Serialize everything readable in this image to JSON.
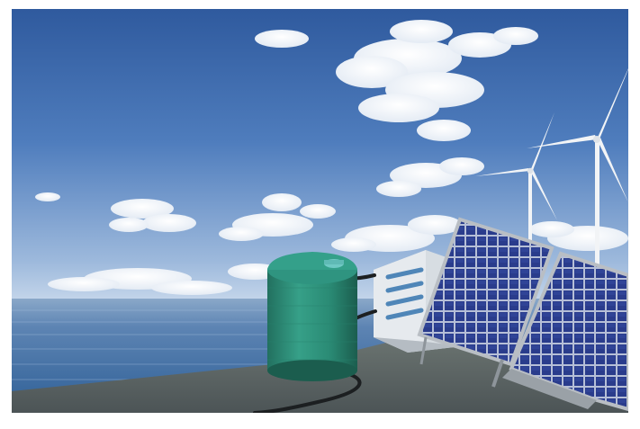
{
  "scene": {
    "colors": {
      "sky_top": "#2f5a9e",
      "sky_mid": "#5a86c4",
      "sky_horizon": "#c9d9ec",
      "sea_far": "#6b8fb8",
      "sea_near": "#2e5f96",
      "ground": "#5a6366",
      "tank": "#2e8f7a",
      "tank_dark": "#1f6b5a",
      "tank_lid": "#6fc9c4",
      "panel_cell": "#2c3f8f",
      "panel_grid": "#c6cde0",
      "panel_frame": "#b9bec4",
      "turbine": "#f2f4f6",
      "hose": "#1c1f21",
      "frame_border": "#ffffff"
    },
    "icons": {
      "storage_tank": "water-storage-tank-icon",
      "solar_panel": "solar-panel-icon",
      "wind_turbine": "wind-turbine-icon",
      "treatment_unit": "filtration-unit-icon",
      "hose": "hose-pipe-icon"
    }
  }
}
